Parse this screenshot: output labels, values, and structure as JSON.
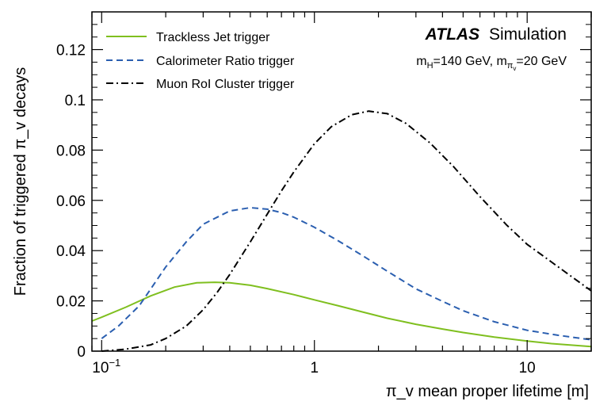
{
  "chart_data": {
    "type": "line",
    "xlabel": "π_v mean proper lifetime [m]",
    "ylabel": "Fraction of triggered π_v decays",
    "xscale": "log",
    "xlim": [
      0.09,
      20
    ],
    "ylim": [
      0,
      0.135
    ],
    "x_tick_labels": [
      {
        "value": 0.1,
        "base": "10",
        "exp": "−1"
      },
      {
        "value": 1,
        "base": "1",
        "exp": ""
      },
      {
        "value": 10,
        "base": "10",
        "exp": ""
      }
    ],
    "y_ticks": [
      0,
      0.02,
      0.04,
      0.06,
      0.08,
      0.1,
      0.12
    ],
    "y_tick_labels": [
      "0",
      "0.02",
      "0.04",
      "0.06",
      "0.08",
      "0.1",
      "0.12"
    ],
    "grid": false,
    "legend_position": "top-left",
    "annotations": {
      "atlas": "ATLAS",
      "simulation": "Simulation",
      "mass_mH": "m",
      "mass_mH_sub": "H",
      "mass_mH_val": "=140 GeV, m",
      "mass_mpi_sub": "π",
      "mass_mpi_subsub": "v",
      "mass_mpi_val": "=20 GeV"
    },
    "series": [
      {
        "name": "Trackless Jet trigger",
        "color": "#7fbf1f",
        "style": "solid",
        "x": [
          0.09,
          0.1,
          0.13,
          0.17,
          0.22,
          0.28,
          0.34,
          0.4,
          0.5,
          0.6,
          0.8,
          1.0,
          1.3,
          1.7,
          2.2,
          3,
          4,
          5,
          7,
          10,
          13,
          20
        ],
        "y": [
          0.012,
          0.0135,
          0.0175,
          0.022,
          0.0255,
          0.0272,
          0.0274,
          0.0272,
          0.0262,
          0.0249,
          0.0225,
          0.0204,
          0.018,
          0.0155,
          0.0131,
          0.0107,
          0.0088,
          0.0074,
          0.0056,
          0.004,
          0.003,
          0.0018
        ]
      },
      {
        "name": "Calorimeter Ratio trigger",
        "color": "#2b5fb0",
        "style": "dashed",
        "x": [
          0.1,
          0.12,
          0.15,
          0.2,
          0.25,
          0.3,
          0.4,
          0.5,
          0.6,
          0.7,
          0.8,
          1.0,
          1.3,
          1.7,
          2.2,
          3,
          4,
          5,
          7,
          10,
          14,
          20
        ],
        "y": [
          0.005,
          0.01,
          0.018,
          0.0335,
          0.0435,
          0.0505,
          0.0558,
          0.0571,
          0.0565,
          0.0551,
          0.0533,
          0.0493,
          0.0438,
          0.0378,
          0.0318,
          0.0248,
          0.0198,
          0.0161,
          0.0117,
          0.0083,
          0.0063,
          0.0045
        ]
      },
      {
        "name": "Muon RoI Cluster trigger",
        "color": "#000000",
        "style": "dashdot",
        "x": [
          0.1,
          0.13,
          0.17,
          0.2,
          0.25,
          0.3,
          0.35,
          0.4,
          0.5,
          0.6,
          0.7,
          0.8,
          1.0,
          1.2,
          1.5,
          1.8,
          2.2,
          2.7,
          3.5,
          4.5,
          6,
          8,
          10,
          13,
          20
        ],
        "y": [
          0.0,
          0.0008,
          0.0025,
          0.005,
          0.01,
          0.0165,
          0.0235,
          0.0305,
          0.0435,
          0.0545,
          0.0638,
          0.0713,
          0.0825,
          0.0893,
          0.0941,
          0.0955,
          0.0945,
          0.0906,
          0.0828,
          0.0735,
          0.0615,
          0.0502,
          0.0425,
          0.0355,
          0.024
        ]
      }
    ]
  }
}
